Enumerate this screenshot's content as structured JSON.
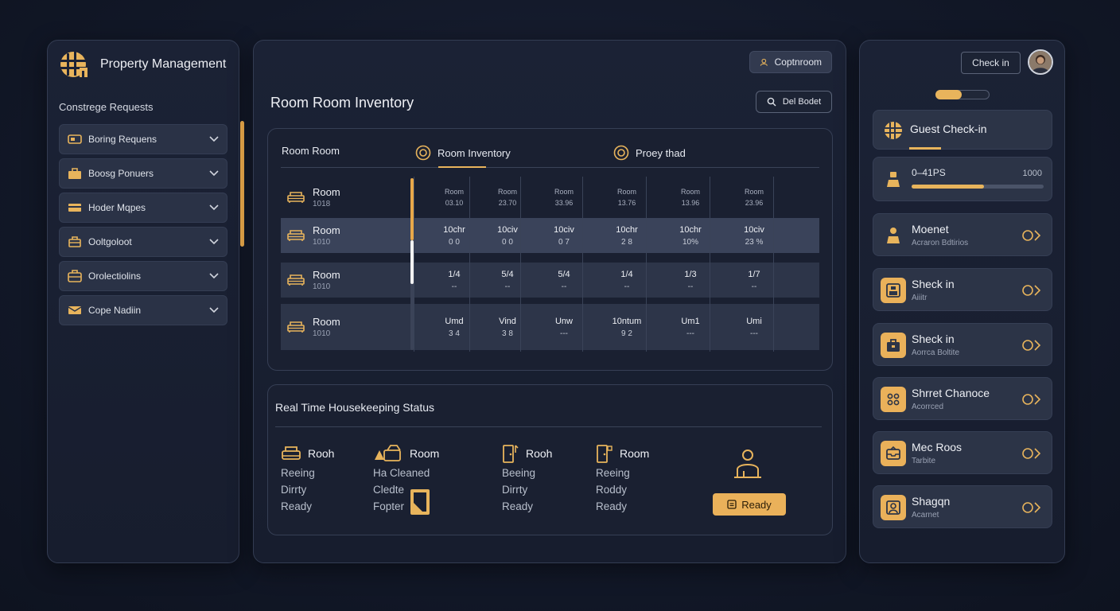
{
  "brand": {
    "name": "Property Management"
  },
  "left": {
    "section_title": "Constrege Requests",
    "items": [
      {
        "label": "Boring Requens",
        "icon": "ticket-icon"
      },
      {
        "label": "Boosg Ponuers",
        "icon": "bag-icon"
      },
      {
        "label": "Hoder Mqpes",
        "icon": "card-icon"
      },
      {
        "label": "Ooltgoloot",
        "icon": "cart-icon"
      },
      {
        "label": "Orolectiolins",
        "icon": "box-icon"
      },
      {
        "label": "Cope Nadiin",
        "icon": "envelope-icon"
      }
    ]
  },
  "center": {
    "title": "Room Room Inventory",
    "search_button": "Coptnroom",
    "filter_button": "Del Bodet",
    "tabs": [
      {
        "label": "Room Room"
      },
      {
        "label": "Room Inventory"
      },
      {
        "label": "Proey thad"
      }
    ],
    "inventory": {
      "rows": [
        {
          "name": "Room",
          "code": "1018",
          "cells": [
            [
              "Room",
              "03.10"
            ],
            [
              "Room",
              "23.70"
            ],
            [
              "Room",
              "33.96"
            ],
            [
              "Room",
              "13.76"
            ],
            [
              "Room",
              "13.96"
            ],
            [
              "Room",
              "23.96"
            ]
          ]
        },
        {
          "name": "Room",
          "code": "1010",
          "cells": [
            [
              "10chr",
              "0 0"
            ],
            [
              "10civ",
              "0 0"
            ],
            [
              "10civ",
              "0 7"
            ],
            [
              "10chr",
              "2 8"
            ],
            [
              "10chr",
              "10%"
            ],
            [
              "10civ",
              "23 %"
            ]
          ]
        },
        {
          "name": "Room",
          "code": "1010",
          "cells": [
            [
              "1/4",
              "--"
            ],
            [
              "5/4",
              "--"
            ],
            [
              "5/4",
              "--"
            ],
            [
              "1/4",
              "--"
            ],
            [
              "1/3",
              "--"
            ],
            [
              "1/7",
              "--"
            ]
          ]
        },
        {
          "name": "Room",
          "code": "1010",
          "cells": [
            [
              "Umd",
              "3 4"
            ],
            [
              "Vind",
              "3 8"
            ],
            [
              "Unw",
              "---"
            ],
            [
              "10ntum",
              "9 2"
            ],
            [
              "Um1",
              "---"
            ],
            [
              "Umi",
              "---"
            ]
          ]
        }
      ]
    },
    "housekeeping": {
      "title": "Real Time Housekeeping Status",
      "columns": [
        {
          "label": "Rooh",
          "icon": "bed-icon",
          "statuses": [
            "Reeing",
            "Dirrty",
            "Ready"
          ]
        },
        {
          "label": "Room",
          "icon": "cleaning-icon",
          "statuses": [
            "Ha Cleaned",
            "Cledte",
            "Fopter"
          ]
        },
        {
          "label": "Rooh",
          "icon": "door-icon",
          "statuses": [
            "Beeing",
            "Dirrty",
            "Ready"
          ]
        },
        {
          "label": "Room",
          "icon": "door-icon",
          "statuses": [
            "Reeing",
            "Roddy",
            "Ready"
          ]
        }
      ],
      "ready_button": "Ready"
    }
  },
  "right": {
    "checkin_button": "Check in",
    "top_progress": 0.48,
    "guest_checkin_title": "Guest Check-in",
    "progress_card": {
      "label": "0–41PS",
      "value": "1000",
      "progress": 0.55
    },
    "cards": [
      {
        "title": "Moenet",
        "subtitle": "Acraron Bdtirios",
        "icon": "person-icon",
        "filled": false
      },
      {
        "title": "Sheck in",
        "subtitle": "Aiiitr",
        "icon": "badge-icon",
        "filled": true
      },
      {
        "title": "Sheck in",
        "subtitle": "Aorrca Boltite",
        "icon": "luggage-icon",
        "filled": true
      },
      {
        "title": "Shrret Chanoce",
        "subtitle": "Acorrced",
        "icon": "group-icon",
        "filled": true
      },
      {
        "title": "Mec Roos",
        "subtitle": "Tarbite",
        "icon": "inbox-icon",
        "filled": true
      },
      {
        "title": "Shagqn",
        "subtitle": "Acarnet",
        "icon": "user-icon",
        "filled": true
      }
    ]
  },
  "colors": {
    "accent": "#e8b45c",
    "panel": "#1b2235",
    "card": "#2c3447"
  }
}
